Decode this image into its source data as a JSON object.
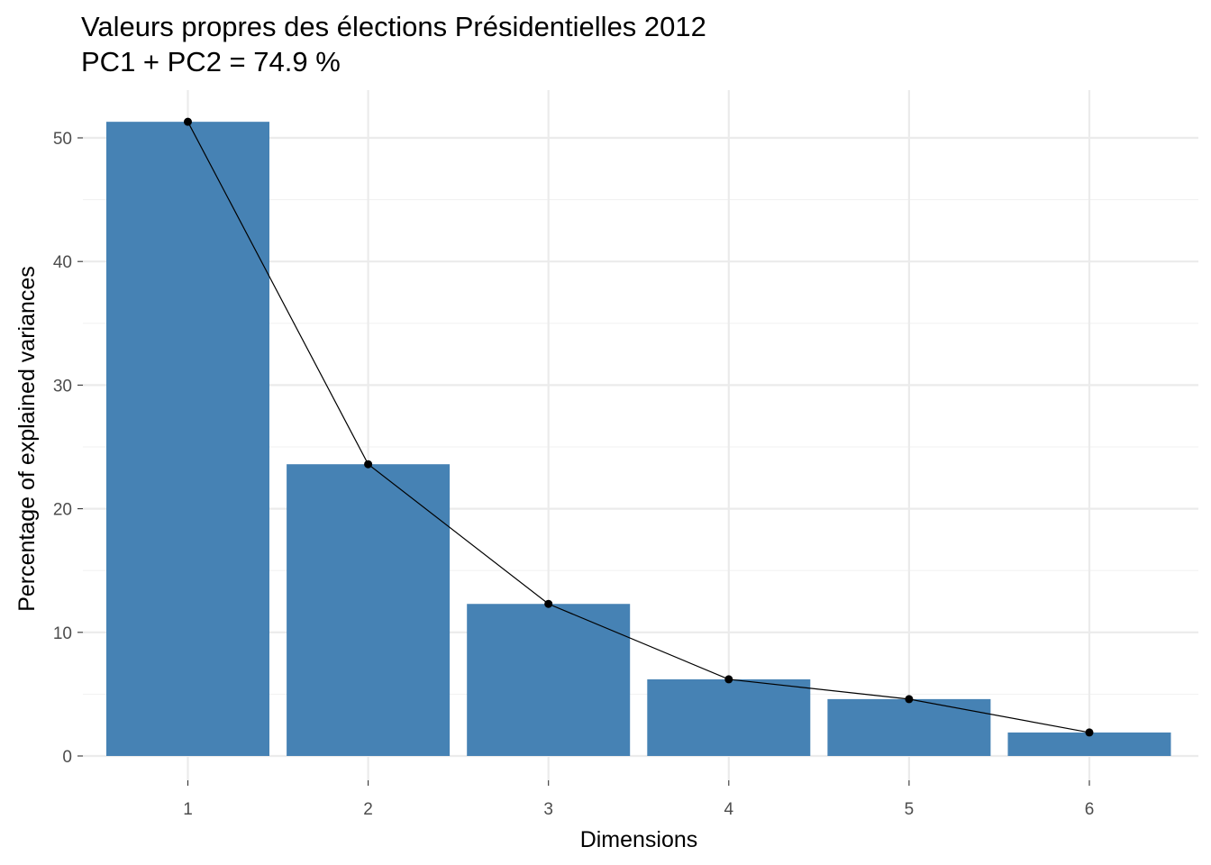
{
  "chart_data": {
    "type": "bar",
    "title": "Valeurs propres des élections  Présidentielles 2012",
    "subtitle": "PC1 + PC2 = 74.9 %",
    "xlabel": "Dimensions",
    "ylabel": "Percentage of explained variances",
    "categories": [
      "1",
      "2",
      "3",
      "4",
      "5",
      "6"
    ],
    "values": [
      51.3,
      23.6,
      12.3,
      6.2,
      4.6,
      1.9
    ],
    "ylim": [
      0,
      53.9
    ],
    "yticks": [
      0,
      10,
      20,
      30,
      40,
      50
    ],
    "grid": true,
    "legend": "none",
    "bar_color": "#4682b4",
    "line_color": "#000000",
    "overlay": "line-with-points"
  }
}
